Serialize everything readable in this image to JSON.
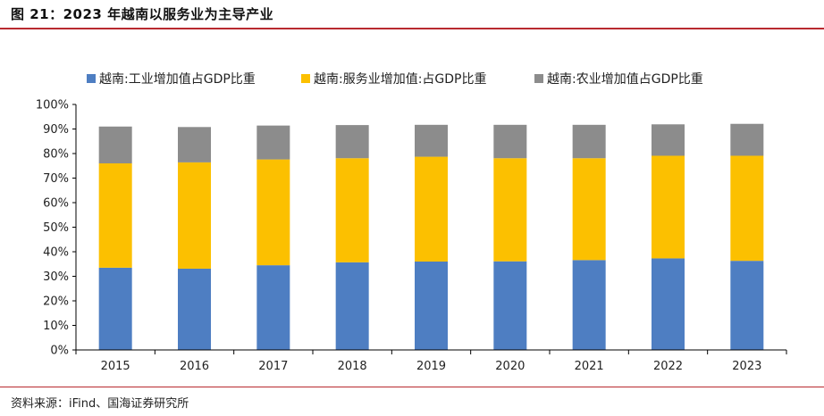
{
  "header": {
    "title": "图 21：2023 年越南以服务业为主导产业"
  },
  "footer": {
    "source": "资料来源：iFind、国海证券研究所"
  },
  "chart_data": {
    "type": "bar",
    "stacked": true,
    "categories": [
      "2015",
      "2016",
      "2017",
      "2018",
      "2019",
      "2020",
      "2021",
      "2022",
      "2023"
    ],
    "series": [
      {
        "name": "越南:工业增加值占GDP比重",
        "color": "#4e7ec2",
        "values": [
          33.5,
          33.1,
          34.5,
          35.7,
          36.0,
          36.1,
          36.6,
          37.3,
          36.3
        ]
      },
      {
        "name": "越南:服务业增加值:占GDP比重",
        "color": "#fcc000",
        "values": [
          42.5,
          43.3,
          43.1,
          42.4,
          42.7,
          42.0,
          41.5,
          41.8,
          42.8
        ]
      },
      {
        "name": "越南:农业增加值占GDP比重",
        "color": "#8c8c8c",
        "values": [
          15.0,
          14.4,
          13.8,
          13.5,
          13.0,
          13.6,
          13.6,
          12.8,
          13.0
        ]
      }
    ],
    "ylim": [
      0,
      100
    ],
    "yticks": [
      "0%",
      "10%",
      "20%",
      "30%",
      "40%",
      "50%",
      "60%",
      "70%",
      "80%",
      "90%",
      "100%"
    ],
    "legend_position": "top"
  }
}
